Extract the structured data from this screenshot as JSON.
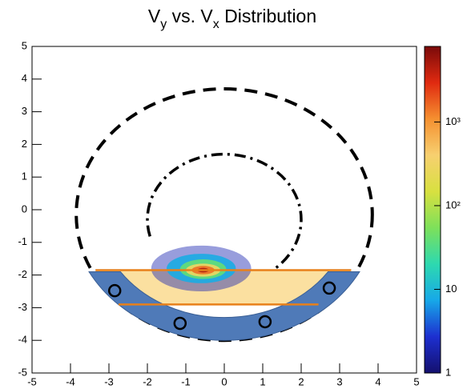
{
  "chart_data": {
    "type": "hist2d",
    "title": [
      {
        "text": "V"
      },
      {
        "text": "y",
        "sub": true
      },
      {
        "text": " vs. V"
      },
      {
        "text": "x",
        "sub": true
      },
      {
        "text": " Distribution"
      }
    ],
    "xlim": [
      -5,
      5
    ],
    "ylim": [
      -5,
      5
    ],
    "xticks": [
      -5,
      -4,
      -3,
      -2,
      -1,
      0,
      1,
      2,
      3,
      4,
      5
    ],
    "yticks": [
      -5,
      -4,
      -3,
      -2,
      -1,
      0,
      1,
      2,
      3,
      4,
      5
    ],
    "zlim": [
      1,
      8000
    ],
    "zlog": true,
    "zticks": [
      1,
      10,
      {
        "value": 100,
        "label": "10²"
      },
      {
        "value": 1000,
        "label": "10³"
      }
    ],
    "colormap": [
      "#14106e",
      "#1d2fd0",
      "#17a8e8",
      "#2dd9b0",
      "#7de05a",
      "#d8e040",
      "#f7d070",
      "#f59030",
      "#e02a10",
      "#7a0a0a"
    ],
    "density": [
      {
        "x": -0.6,
        "y": -1.8,
        "rx": 1.3,
        "ry": 0.7,
        "count": 2
      },
      {
        "x": -0.6,
        "y": -1.8,
        "rx": 0.9,
        "ry": 0.45,
        "count": 8
      },
      {
        "x": -0.55,
        "y": -1.82,
        "rx": 0.6,
        "ry": 0.3,
        "count": 40
      },
      {
        "x": -0.55,
        "y": -1.85,
        "rx": 0.45,
        "ry": 0.2,
        "count": 300
      },
      {
        "x": -0.55,
        "y": -1.85,
        "rx": 0.3,
        "ry": 0.13,
        "count": 1500
      },
      {
        "x": -0.55,
        "y": -1.85,
        "rx": 0.15,
        "ry": 0.07,
        "count": 5000
      }
    ],
    "region": {
      "x": [
        -3.35,
        3.3,
        2.45,
        -2.75
      ],
      "y": [
        -1.85,
        -1.85,
        -2.9,
        -2.9
      ],
      "fill": "#fbe0a0",
      "color": "#e8801a"
    },
    "band": {
      "cx": 0,
      "cy": 0,
      "r1": 3.3,
      "r2": 4.0,
      "cut": -1.9,
      "color": "#4f7ab8"
    },
    "outer_circle": {
      "cx": 0,
      "cy": -0.15,
      "r": 3.85
    },
    "inner_arc": {
      "cx": 0,
      "cy": -0.3,
      "r": 2.0,
      "from": 195,
      "to": -55
    },
    "markers": {
      "x": [
        -2.85,
        -1.15,
        1.06,
        2.73
      ],
      "y": [
        -2.48,
        -3.48,
        -3.43,
        -2.4
      ]
    }
  }
}
